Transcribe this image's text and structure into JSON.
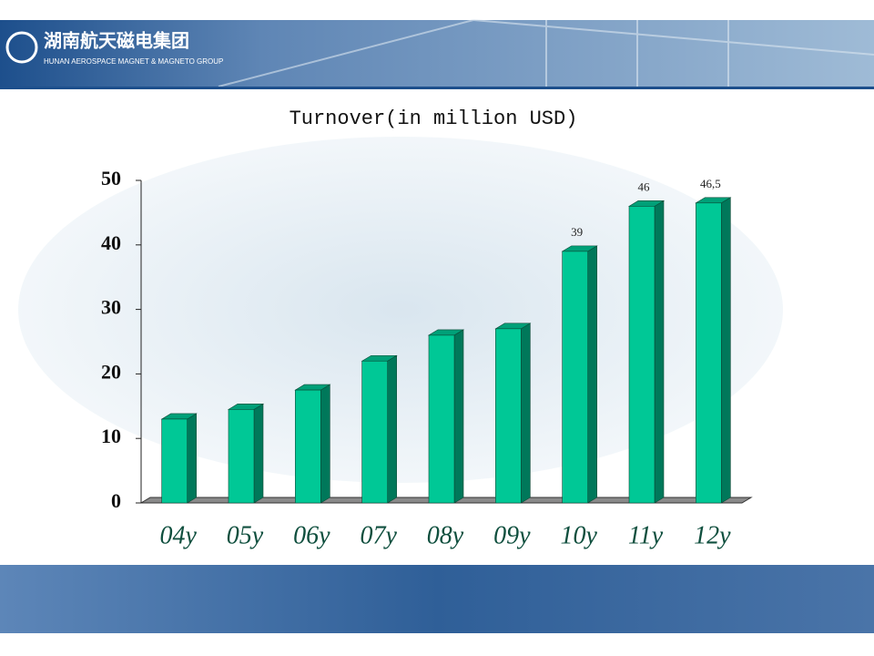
{
  "header": {
    "logo_cn": "湖南航天磁电集团",
    "logo_en": "HUNAN AEROSPACE MAGNET & MAGNETO GROUP"
  },
  "chart_data": {
    "type": "bar3d",
    "title": "Turnover(in million USD)",
    "categories": [
      "04y",
      "05y",
      "06y",
      "07y",
      "08y",
      "09y",
      "10y",
      "11y",
      "12y"
    ],
    "values": [
      13,
      14.5,
      17.5,
      22,
      26,
      27,
      39,
      46,
      46.5
    ],
    "value_labels": [
      null,
      null,
      null,
      null,
      null,
      null,
      "39",
      "46",
      "46,5"
    ],
    "color": "#00c896",
    "ylim": [
      0,
      50
    ],
    "yticks": [
      0,
      10,
      20,
      30,
      40,
      50
    ]
  }
}
